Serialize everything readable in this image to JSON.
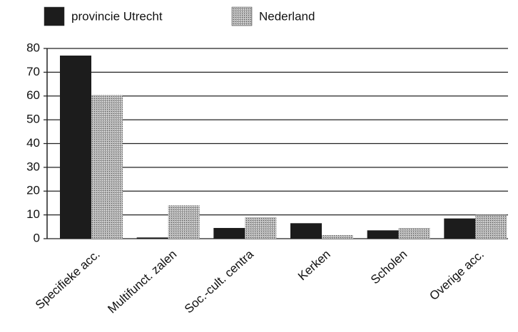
{
  "chart_data": {
    "type": "bar",
    "categories": [
      "Specifieke acc.",
      "Multifunct. zalen",
      "Soc.-cult. centra",
      "Kerken",
      "Scholen",
      "Overige acc."
    ],
    "series": [
      {
        "name": "provincie Utrecht",
        "color": "#1c1c1c",
        "values": [
          77,
          0.5,
          4.5,
          6.5,
          3.5,
          8.5
        ]
      },
      {
        "name": "Nederland",
        "color": "#a8a8a8",
        "values": [
          60.5,
          14,
          9,
          1.5,
          4.5,
          10
        ]
      }
    ],
    "ylim": [
      0,
      80
    ],
    "yticks": [
      0,
      10,
      20,
      30,
      40,
      50,
      60,
      70,
      80
    ],
    "grid": true
  }
}
